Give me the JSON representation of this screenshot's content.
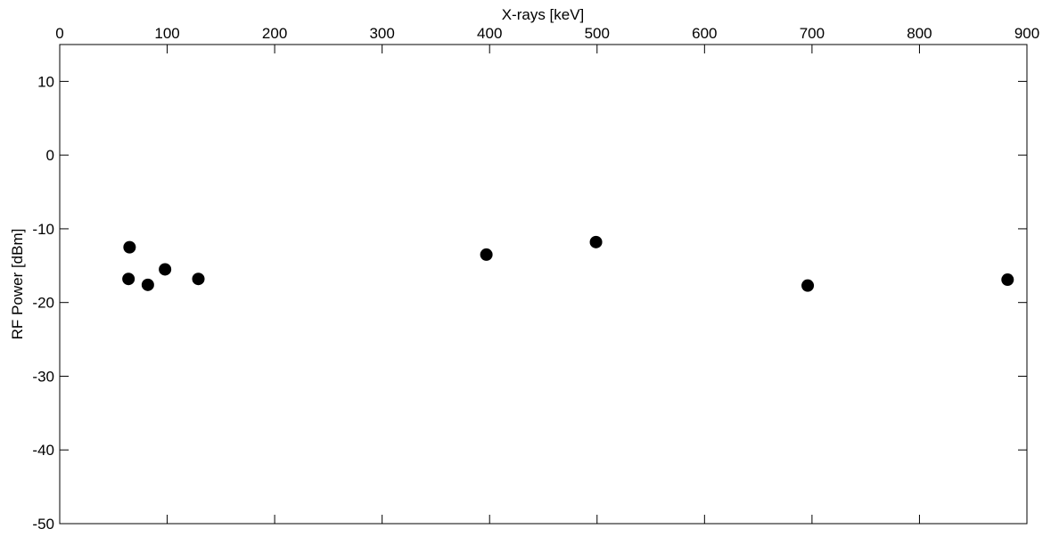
{
  "chart_data": {
    "type": "scatter",
    "title": "",
    "xlabel": "X-rays [keV]",
    "ylabel": "RF Power [dBm]",
    "xlim": [
      0,
      900
    ],
    "ylim": [
      -50,
      15
    ],
    "x_axis_position": "top",
    "grid": false,
    "legend": "none",
    "xticks": [
      0,
      100,
      200,
      300,
      400,
      500,
      600,
      700,
      800,
      900
    ],
    "yticks": [
      -50,
      -40,
      -30,
      -20,
      -10,
      0,
      10
    ],
    "series": [
      {
        "marker": "filled-circle",
        "color": "#000000",
        "points": [
          {
            "x": 64,
            "y": -16.8
          },
          {
            "x": 65,
            "y": -12.5
          },
          {
            "x": 82,
            "y": -17.6
          },
          {
            "x": 98,
            "y": -15.5
          },
          {
            "x": 129,
            "y": -16.8
          },
          {
            "x": 397,
            "y": -13.5
          },
          {
            "x": 499,
            "y": -11.8
          },
          {
            "x": 696,
            "y": -17.7
          },
          {
            "x": 882,
            "y": -16.9
          }
        ]
      }
    ]
  }
}
